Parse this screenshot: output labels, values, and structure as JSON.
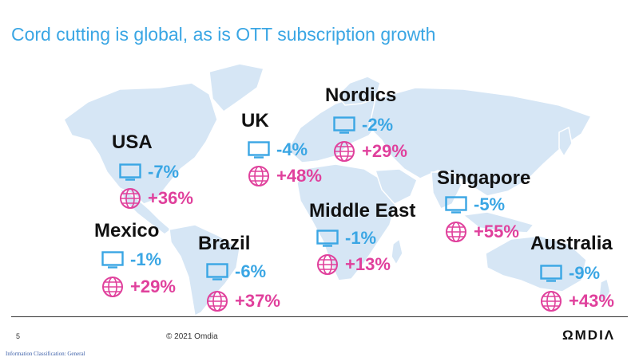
{
  "title": "Cord cutting is global, as is OTT subscription growth",
  "colors": {
    "tv": "#3aa6e4",
    "ott": "#e0409c",
    "map": "#d6e6f5",
    "title": "#3aa6e4"
  },
  "icons": {
    "tv": "monitor-icon",
    "ott": "globe-icon"
  },
  "regions": {
    "usa": {
      "name": "USA",
      "tv": "-7%",
      "ott": "+36%"
    },
    "uk": {
      "name": "UK",
      "tv": "-4%",
      "ott": "+48%"
    },
    "nordics": {
      "name": "Nordics",
      "tv": "-2%",
      "ott": "+29%"
    },
    "singapore": {
      "name": "Singapore",
      "tv": "-5%",
      "ott": "+55%"
    },
    "middle_east": {
      "name": "Middle East",
      "tv": "-1%",
      "ott": "+13%"
    },
    "mexico": {
      "name": "Mexico",
      "tv": "-1%",
      "ott": "+29%"
    },
    "brazil": {
      "name": "Brazil",
      "tv": "-6%",
      "ott": "+37%"
    },
    "australia": {
      "name": "Australia",
      "tv": "-9%",
      "ott": "+43%"
    }
  },
  "footer": {
    "page_number": "5",
    "copyright": "© 2021 Omdia",
    "brand": "ΩMDIΛ",
    "classification": "Information Classification: General"
  }
}
